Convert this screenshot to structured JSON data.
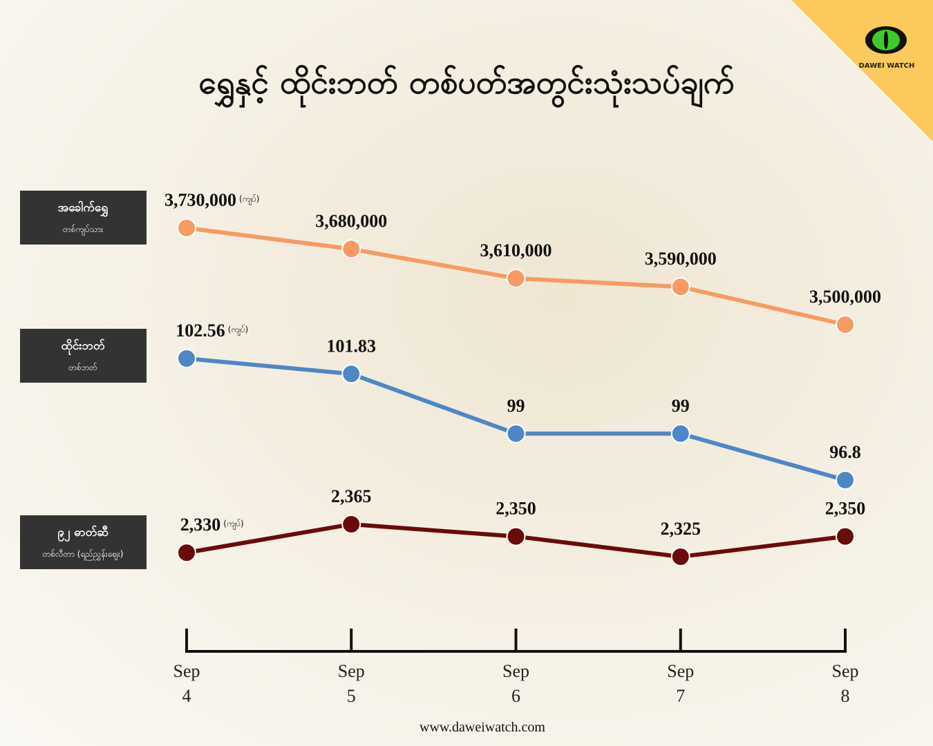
{
  "chart_data": {
    "type": "line",
    "title": "ရွှေနှင့် ထိုင်းဘတ် တစ်ပတ်အတွင်းသုံးသပ်ချက်",
    "brand": "DAWEI WATCH",
    "source": "www.daweiwatch.com",
    "categories": [
      "Sep 4",
      "Sep 5",
      "Sep 6",
      "Sep 7",
      "Sep 8"
    ],
    "series": [
      {
        "name": "အခေါက်ရွှေ",
        "subtitle": "တစ်ကျပ်သား",
        "unit": "(ကျပ်)",
        "color": "#f79a64",
        "values": [
          3730000,
          3680000,
          3610000,
          3590000,
          3500000
        ],
        "value_labels": [
          "3,730,000",
          "3,680,000",
          "3,610,000",
          "3,590,000",
          "3,500,000"
        ]
      },
      {
        "name": "ထိုင်းဘတ်",
        "subtitle": "တစ်ဘတ်",
        "unit": "(ကျပ်)",
        "color": "#4f86c6",
        "values": [
          102.56,
          101.83,
          99,
          99,
          96.8
        ]
      },
      {
        "name": "၉၂ ဓာတ်ဆီ",
        "subtitle": "တစ်လီတာ (ရည်ညွှန်းဈေး)",
        "unit": "(ကျပ်)",
        "color": "#6b0a0a",
        "values": [
          2330,
          2365,
          2350,
          2325,
          2350
        ],
        "value_labels": [
          "2,330",
          "2,365",
          "2,350",
          "2,325",
          "2,350"
        ]
      }
    ]
  }
}
